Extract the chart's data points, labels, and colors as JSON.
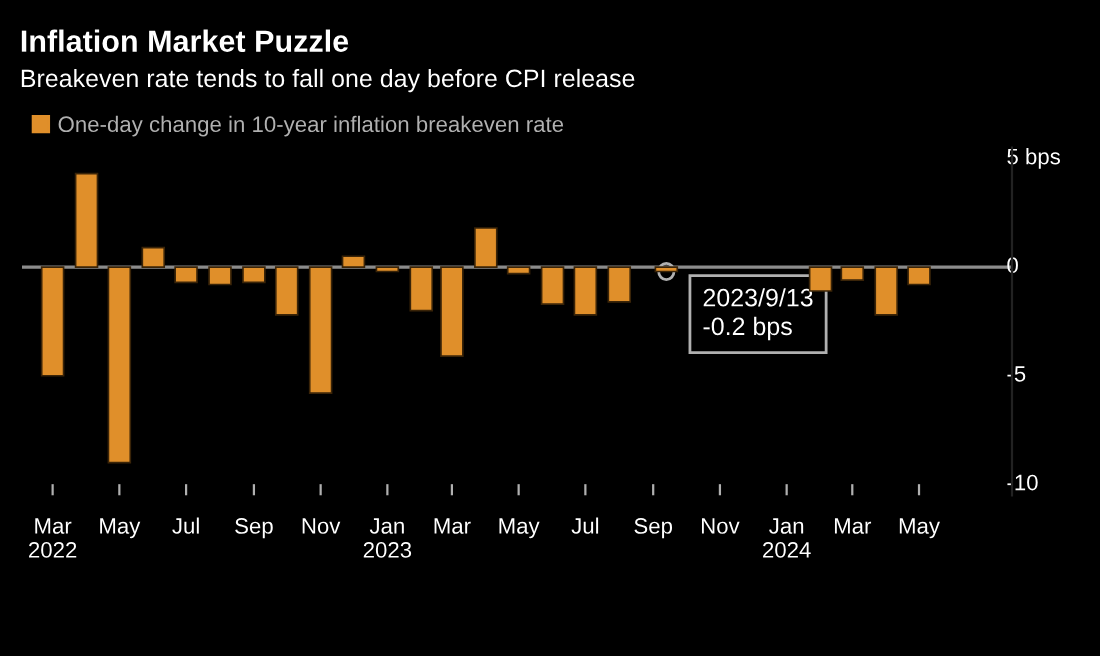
{
  "chart_data": {
    "type": "bar",
    "title": "Inflation Market Puzzle",
    "subtitle": "Breakeven rate tends to fall one day before CPI release",
    "x": [
      "2022-03",
      "2022-04",
      "2022-05",
      "2022-06",
      "2022-07",
      "2022-08",
      "2022-09",
      "2022-10",
      "2022-11",
      "2022-12",
      "2023-01",
      "2023-02",
      "2023-03",
      "2023-04",
      "2023-05",
      "2023-06",
      "2023-07",
      "2023-08",
      "2023-09-13",
      "2023-10",
      "2023-11",
      "2023-12",
      "2024-01",
      "2024-02",
      "2024-03",
      "2024-04",
      "2024-05"
    ],
    "series": [
      {
        "name": "One-day change in 10-year inflation breakeven rate",
        "color": "#e08f2a",
        "values": [
          -5.0,
          4.3,
          -9.0,
          0.9,
          -0.7,
          -0.8,
          -0.7,
          -2.2,
          -5.8,
          0.5,
          -0.2,
          -2.0,
          -4.1,
          1.8,
          -0.3,
          -1.7,
          -2.2,
          -1.6,
          -0.2,
          null,
          null,
          null,
          null,
          -1.1,
          -0.6,
          -2.2,
          -0.8
        ]
      }
    ],
    "xlim": [
      "2022-02-01",
      "2024-07-25"
    ],
    "xticks": [
      {
        "value": "2022-03",
        "label": "Mar\n2022"
      },
      {
        "value": "2022-05",
        "label": "May"
      },
      {
        "value": "2022-07",
        "label": "Jul"
      },
      {
        "value": "2022-09",
        "label": "Sep"
      },
      {
        "value": "2022-11",
        "label": "Nov"
      },
      {
        "value": "2023-01",
        "label": "Jan\n2023"
      },
      {
        "value": "2023-03",
        "label": "Mar"
      },
      {
        "value": "2023-05",
        "label": "May"
      },
      {
        "value": "2023-07",
        "label": "Jul"
      },
      {
        "value": "2023-09",
        "label": "Sep"
      },
      {
        "value": "2023-11",
        "label": "Nov"
      },
      {
        "value": "2024-01",
        "label": "Jan\n2024"
      },
      {
        "value": "2024-03",
        "label": "Mar"
      },
      {
        "value": "2024-05",
        "label": "May"
      }
    ],
    "ylim": [
      -10.5,
      5.5
    ],
    "yticks": [
      {
        "value": 5,
        "label": "5 bps"
      },
      0,
      -5,
      -10
    ],
    "ref_lines": [
      {
        "axis": "y",
        "value": 0,
        "color": "#8c8c8c"
      }
    ],
    "annotations": [
      {
        "text": "2023/9/13\n-0.2 bps",
        "x": "2023-09-13",
        "y": -0.2
      }
    ],
    "grid": false,
    "legend": "top left"
  }
}
